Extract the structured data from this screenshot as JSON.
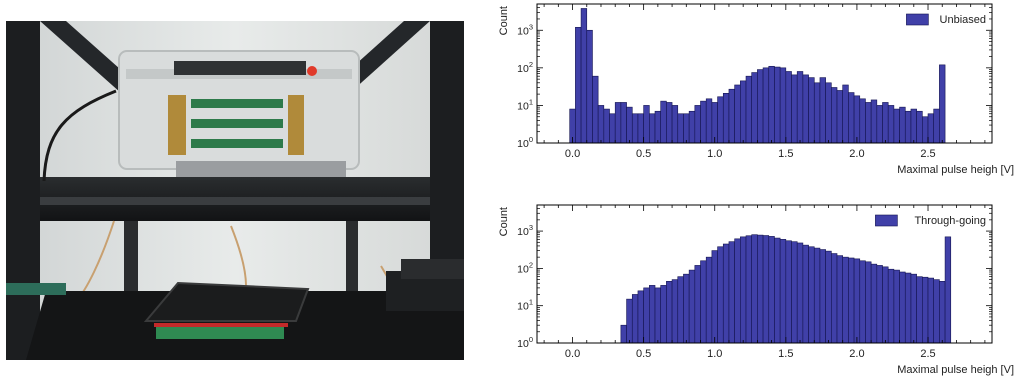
{
  "photo": {
    "description_icon": "lab-setup-photo"
  },
  "chart_data": [
    {
      "type": "bar",
      "legend": "Unbiased",
      "legend_position": "top-right",
      "ylabel": "Count",
      "xlabel": "Maximal pulse heigh [V]",
      "yscale": "log",
      "ylim": [
        1,
        5000
      ],
      "xlim": [
        -0.25,
        2.95
      ],
      "xticks": [
        "0.0",
        "0.5",
        "1.0",
        "1.5",
        "2.0",
        "2.5"
      ],
      "xtick_values": [
        0.0,
        0.5,
        1.0,
        1.5,
        2.0,
        2.5
      ],
      "yticks": [
        "10^0",
        "10^1",
        "10^2",
        "10^3"
      ],
      "bin_edges_start": -0.02,
      "bin_width": 0.04,
      "values": [
        8,
        1200,
        3800,
        1000,
        60,
        10,
        8,
        6,
        12,
        12,
        9,
        6,
        6,
        10,
        6,
        7,
        13,
        12,
        10,
        6,
        6,
        7,
        10,
        13,
        15,
        12,
        17,
        21,
        27,
        35,
        45,
        60,
        75,
        90,
        100,
        110,
        105,
        100,
        80,
        65,
        80,
        65,
        55,
        40,
        55,
        40,
        30,
        25,
        35,
        22,
        18,
        15,
        12,
        14,
        10,
        12,
        10,
        8,
        9,
        7,
        8,
        7,
        5,
        6,
        8,
        120
      ],
      "color": "#4040a8"
    },
    {
      "type": "bar",
      "legend": "Through-going",
      "legend_position": "top-right",
      "ylabel": "Count",
      "xlabel": "Maximal pulse heigh [V]",
      "yscale": "log",
      "ylim": [
        1,
        5000
      ],
      "xlim": [
        -0.25,
        2.95
      ],
      "xticks": [
        "0.0",
        "0.5",
        "1.0",
        "1.5",
        "2.0",
        "2.5"
      ],
      "xtick_values": [
        0.0,
        0.5,
        1.0,
        1.5,
        2.0,
        2.5
      ],
      "yticks": [
        "10^0",
        "10^1",
        "10^2",
        "10^3"
      ],
      "bin_edges_start": 0.34,
      "bin_width": 0.04,
      "values": [
        3,
        15,
        20,
        25,
        30,
        35,
        30,
        35,
        45,
        50,
        60,
        70,
        90,
        120,
        160,
        200,
        300,
        380,
        450,
        520,
        620,
        700,
        750,
        800,
        780,
        760,
        720,
        650,
        600,
        550,
        520,
        480,
        420,
        380,
        350,
        320,
        290,
        250,
        220,
        200,
        190,
        180,
        160,
        150,
        130,
        120,
        110,
        95,
        90,
        80,
        75,
        70,
        60,
        58,
        55,
        50,
        45,
        700
      ],
      "color": "#4040a8"
    }
  ]
}
